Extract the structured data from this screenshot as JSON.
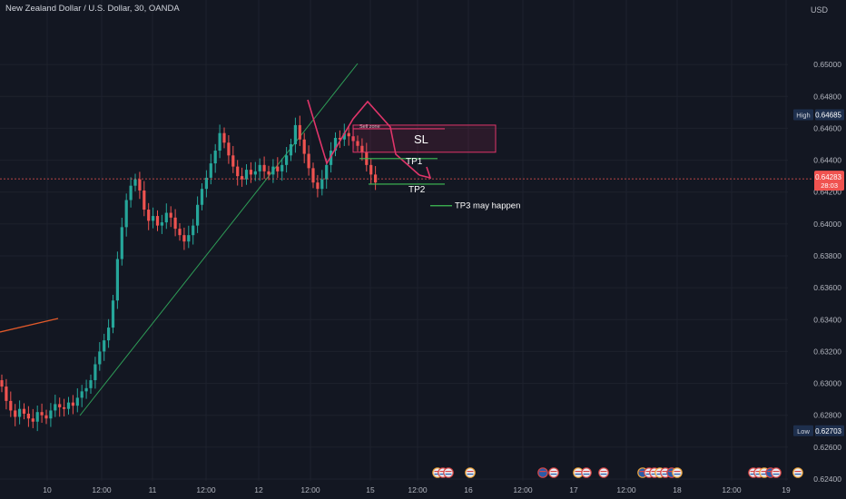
{
  "header": {
    "title": "New Zealand Dollar / U.S. Dollar, 30, OANDA",
    "currency": "USD"
  },
  "colors": {
    "background": "#131722",
    "grid": "#1e222d",
    "up": "#26a69a",
    "down": "#ef5350",
    "trendline": "#2e9d57",
    "orange_line": "#e0592a",
    "annotation_red": "#e0356a",
    "annotation_green": "#3fbf55",
    "price_tag": "#f05350",
    "label_bg": "#1e2f4d"
  },
  "chart_data": {
    "type": "candlestick",
    "title": "",
    "ylim": [
      0.624,
      0.652
    ],
    "y_ticks": [
      "0.65000",
      "0.64800",
      "0.64600",
      "0.64400",
      "0.64200",
      "0.64000",
      "0.63800",
      "0.63600",
      "0.63400",
      "0.63200",
      "0.63000",
      "0.62800",
      "0.62600",
      "0.62400"
    ],
    "x_ticks": [
      "10",
      "12:00",
      "11",
      "12:00",
      "12",
      "12:00",
      "15",
      "12:00",
      "16",
      "12:00",
      "17",
      "12:00",
      "18",
      "12:00",
      "19"
    ],
    "series": [
      {
        "values": [
          0.6298,
          0.6289,
          0.6283,
          0.6279,
          0.6284,
          0.6281,
          0.6278,
          0.6276,
          0.6282,
          0.628,
          0.6278,
          0.6283,
          0.6287,
          0.6285,
          0.6284,
          0.6288,
          0.6286,
          0.6291,
          0.6295,
          0.6297,
          0.6302,
          0.6312,
          0.632,
          0.6327,
          0.6335,
          0.6352,
          0.6378,
          0.6398,
          0.6415,
          0.6424,
          0.6428,
          0.6421,
          0.6409,
          0.6402,
          0.6405,
          0.6399,
          0.6401,
          0.6407,
          0.6404,
          0.6397,
          0.6393,
          0.6389,
          0.6393,
          0.6399,
          0.6412,
          0.6422,
          0.6429,
          0.6438,
          0.6446,
          0.6457,
          0.6451,
          0.6443,
          0.6436,
          0.643,
          0.6428,
          0.6434,
          0.6431,
          0.6433,
          0.6437,
          0.6433,
          0.6431,
          0.6436,
          0.6433,
          0.6437,
          0.6443,
          0.645,
          0.6462,
          0.6453,
          0.6444,
          0.6435,
          0.6426,
          0.6422,
          0.6428,
          0.6437,
          0.6446,
          0.6454,
          0.6453,
          0.6457,
          0.6455,
          0.6452,
          0.6449,
          0.6445,
          0.6437,
          0.6431,
          0.6426
        ]
      }
    ],
    "last_price": "0.64283",
    "countdown": "28:03",
    "high": {
      "label": "High",
      "value": "0.64685"
    },
    "low": {
      "label": "Low",
      "value": "0.62703"
    },
    "annotations": {
      "sell_zone": {
        "label": "Sell zone",
        "y_top": 0.6462,
        "y_bottom": 0.6445
      },
      "sl": {
        "label": "SL"
      },
      "tp1": {
        "label": "TP1",
        "y": 0.6441
      },
      "tp2": {
        "label": "TP2",
        "y": 0.6425
      },
      "tp3": {
        "label": "TP3 may happen",
        "y": 0.6416
      }
    }
  }
}
